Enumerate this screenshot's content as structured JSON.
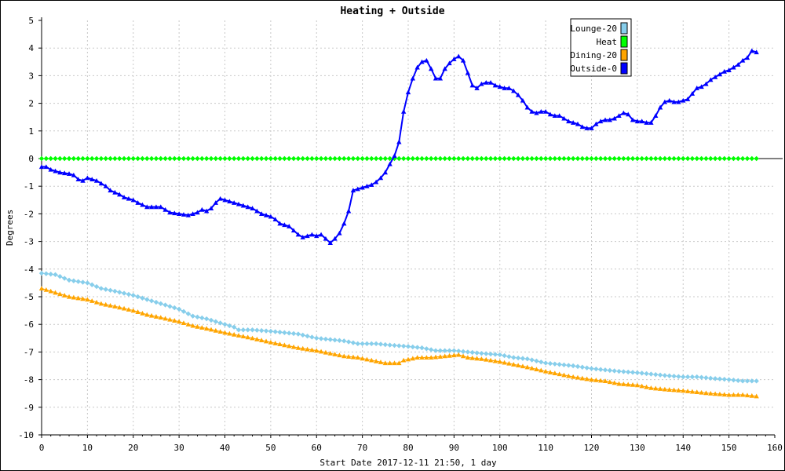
{
  "chart_data": {
    "type": "line",
    "title": "Heating + Outside",
    "xlabel": "Start Date 2017-12-11 21:50, 1 day",
    "ylabel": "Degrees",
    "xlim": [
      0,
      160
    ],
    "ylim": [
      -10,
      5
    ],
    "x_ticks": [
      0,
      10,
      20,
      30,
      40,
      50,
      60,
      70,
      80,
      90,
      100,
      110,
      120,
      130,
      140,
      150,
      160
    ],
    "y_ticks": [
      5,
      4,
      3,
      2,
      1,
      0,
      -1,
      -2,
      -3,
      -4,
      -5,
      -6,
      -7,
      -8,
      -9,
      -10
    ],
    "grid": true,
    "legend_position": "top-right",
    "series": [
      {
        "name": "Lounge-20",
        "color": "#87ceeb",
        "marker": "diamond",
        "points": [
          [
            0,
            -4.15
          ],
          [
            3,
            -4.2
          ],
          [
            6,
            -4.4
          ],
          [
            10,
            -4.5
          ],
          [
            13,
            -4.7
          ],
          [
            16,
            -4.8
          ],
          [
            20,
            -4.95
          ],
          [
            23,
            -5.1
          ],
          [
            26,
            -5.25
          ],
          [
            30,
            -5.45
          ],
          [
            33,
            -5.7
          ],
          [
            36,
            -5.8
          ],
          [
            40,
            -6.0
          ],
          [
            42,
            -6.1
          ],
          [
            43,
            -6.2
          ],
          [
            46,
            -6.2
          ],
          [
            50,
            -6.25
          ],
          [
            53,
            -6.3
          ],
          [
            56,
            -6.35
          ],
          [
            60,
            -6.5
          ],
          [
            63,
            -6.55
          ],
          [
            66,
            -6.6
          ],
          [
            69,
            -6.7
          ],
          [
            73,
            -6.7
          ],
          [
            76,
            -6.75
          ],
          [
            80,
            -6.8
          ],
          [
            83,
            -6.85
          ],
          [
            86,
            -6.95
          ],
          [
            90,
            -6.95
          ],
          [
            93,
            -7.0
          ],
          [
            96,
            -7.05
          ],
          [
            100,
            -7.1
          ],
          [
            103,
            -7.2
          ],
          [
            106,
            -7.25
          ],
          [
            110,
            -7.4
          ],
          [
            113,
            -7.45
          ],
          [
            116,
            -7.5
          ],
          [
            120,
            -7.6
          ],
          [
            123,
            -7.65
          ],
          [
            126,
            -7.7
          ],
          [
            130,
            -7.75
          ],
          [
            133,
            -7.8
          ],
          [
            136,
            -7.85
          ],
          [
            140,
            -7.9
          ],
          [
            143,
            -7.9
          ],
          [
            146,
            -7.95
          ],
          [
            150,
            -8.0
          ],
          [
            153,
            -8.05
          ],
          [
            156,
            -8.05
          ]
        ]
      },
      {
        "name": "Heat",
        "color": "#00ff00",
        "marker": "diamond",
        "points": [
          [
            0,
            0
          ],
          [
            156,
            0
          ]
        ]
      },
      {
        "name": "Dining-20",
        "color": "#ffa500",
        "marker": "triangle",
        "points": [
          [
            0,
            -4.7
          ],
          [
            3,
            -4.85
          ],
          [
            6,
            -5.0
          ],
          [
            10,
            -5.1
          ],
          [
            13,
            -5.25
          ],
          [
            16,
            -5.35
          ],
          [
            20,
            -5.5
          ],
          [
            23,
            -5.65
          ],
          [
            26,
            -5.75
          ],
          [
            30,
            -5.9
          ],
          [
            33,
            -6.05
          ],
          [
            36,
            -6.15
          ],
          [
            40,
            -6.3
          ],
          [
            43,
            -6.4
          ],
          [
            46,
            -6.5
          ],
          [
            50,
            -6.65
          ],
          [
            53,
            -6.75
          ],
          [
            56,
            -6.85
          ],
          [
            60,
            -6.95
          ],
          [
            63,
            -7.05
          ],
          [
            66,
            -7.15
          ],
          [
            69,
            -7.2
          ],
          [
            72,
            -7.3
          ],
          [
            75,
            -7.4
          ],
          [
            78,
            -7.4
          ],
          [
            79,
            -7.3
          ],
          [
            82,
            -7.2
          ],
          [
            85,
            -7.2
          ],
          [
            88,
            -7.15
          ],
          [
            91,
            -7.1
          ],
          [
            93,
            -7.2
          ],
          [
            96,
            -7.25
          ],
          [
            100,
            -7.35
          ],
          [
            103,
            -7.45
          ],
          [
            106,
            -7.55
          ],
          [
            110,
            -7.7
          ],
          [
            113,
            -7.8
          ],
          [
            116,
            -7.9
          ],
          [
            120,
            -8.0
          ],
          [
            123,
            -8.05
          ],
          [
            126,
            -8.15
          ],
          [
            130,
            -8.2
          ],
          [
            133,
            -8.3
          ],
          [
            136,
            -8.35
          ],
          [
            140,
            -8.4
          ],
          [
            143,
            -8.45
          ],
          [
            146,
            -8.5
          ],
          [
            150,
            -8.55
          ],
          [
            153,
            -8.55
          ],
          [
            156,
            -8.6
          ]
        ]
      },
      {
        "name": "Outside-0",
        "color": "#0000ff",
        "marker": "triangle",
        "points": [
          [
            0,
            -0.3
          ],
          [
            1,
            -0.3
          ],
          [
            2,
            -0.4
          ],
          [
            4,
            -0.5
          ],
          [
            6,
            -0.55
          ],
          [
            7,
            -0.6
          ],
          [
            8,
            -0.75
          ],
          [
            9,
            -0.8
          ],
          [
            10,
            -0.7
          ],
          [
            12,
            -0.8
          ],
          [
            14,
            -1.0
          ],
          [
            15,
            -1.15
          ],
          [
            17,
            -1.3
          ],
          [
            18,
            -1.4
          ],
          [
            20,
            -1.5
          ],
          [
            21,
            -1.6
          ],
          [
            23,
            -1.75
          ],
          [
            26,
            -1.75
          ],
          [
            28,
            -1.95
          ],
          [
            30,
            -2.0
          ],
          [
            32,
            -2.05
          ],
          [
            33,
            -2.0
          ],
          [
            34,
            -1.95
          ],
          [
            35,
            -1.85
          ],
          [
            36,
            -1.9
          ],
          [
            37,
            -1.8
          ],
          [
            38,
            -1.6
          ],
          [
            39,
            -1.45
          ],
          [
            40,
            -1.5
          ],
          [
            42,
            -1.6
          ],
          [
            44,
            -1.7
          ],
          [
            46,
            -1.8
          ],
          [
            48,
            -2.0
          ],
          [
            50,
            -2.1
          ],
          [
            51,
            -2.2
          ],
          [
            52,
            -2.35
          ],
          [
            54,
            -2.45
          ],
          [
            55,
            -2.6
          ],
          [
            56,
            -2.75
          ],
          [
            57,
            -2.85
          ],
          [
            58,
            -2.8
          ],
          [
            59,
            -2.75
          ],
          [
            60,
            -2.8
          ],
          [
            61,
            -2.75
          ],
          [
            62,
            -2.9
          ],
          [
            63,
            -3.05
          ],
          [
            64,
            -2.9
          ],
          [
            65,
            -2.7
          ],
          [
            66,
            -2.35
          ],
          [
            67,
            -1.9
          ],
          [
            68,
            -1.15
          ],
          [
            69,
            -1.1
          ],
          [
            70,
            -1.05
          ],
          [
            71,
            -1.0
          ],
          [
            72,
            -0.95
          ],
          [
            73,
            -0.85
          ],
          [
            74,
            -0.7
          ],
          [
            75,
            -0.5
          ],
          [
            76,
            -0.2
          ],
          [
            77,
            0.1
          ],
          [
            78,
            0.6
          ],
          [
            79,
            1.7
          ],
          [
            80,
            2.4
          ],
          [
            81,
            2.9
          ],
          [
            82,
            3.3
          ],
          [
            83,
            3.5
          ],
          [
            84,
            3.55
          ],
          [
            85,
            3.25
          ],
          [
            86,
            2.9
          ],
          [
            87,
            2.9
          ],
          [
            88,
            3.25
          ],
          [
            89,
            3.45
          ],
          [
            90,
            3.6
          ],
          [
            91,
            3.7
          ],
          [
            92,
            3.55
          ],
          [
            93,
            3.1
          ],
          [
            94,
            2.65
          ],
          [
            95,
            2.55
          ],
          [
            96,
            2.7
          ],
          [
            97,
            2.75
          ],
          [
            98,
            2.75
          ],
          [
            99,
            2.65
          ],
          [
            100,
            2.6
          ],
          [
            101,
            2.55
          ],
          [
            102,
            2.55
          ],
          [
            103,
            2.45
          ],
          [
            104,
            2.3
          ],
          [
            105,
            2.1
          ],
          [
            106,
            1.85
          ],
          [
            107,
            1.7
          ],
          [
            108,
            1.65
          ],
          [
            109,
            1.7
          ],
          [
            110,
            1.7
          ],
          [
            111,
            1.6
          ],
          [
            112,
            1.55
          ],
          [
            113,
            1.55
          ],
          [
            114,
            1.45
          ],
          [
            115,
            1.35
          ],
          [
            116,
            1.3
          ],
          [
            117,
            1.25
          ],
          [
            118,
            1.15
          ],
          [
            119,
            1.1
          ],
          [
            120,
            1.1
          ],
          [
            121,
            1.25
          ],
          [
            122,
            1.35
          ],
          [
            123,
            1.4
          ],
          [
            124,
            1.4
          ],
          [
            125,
            1.45
          ],
          [
            126,
            1.55
          ],
          [
            127,
            1.65
          ],
          [
            128,
            1.6
          ],
          [
            129,
            1.4
          ],
          [
            130,
            1.35
          ],
          [
            131,
            1.35
          ],
          [
            132,
            1.3
          ],
          [
            133,
            1.3
          ],
          [
            134,
            1.55
          ],
          [
            135,
            1.85
          ],
          [
            136,
            2.05
          ],
          [
            137,
            2.1
          ],
          [
            138,
            2.05
          ],
          [
            139,
            2.05
          ],
          [
            140,
            2.1
          ],
          [
            141,
            2.15
          ],
          [
            142,
            2.35
          ],
          [
            143,
            2.55
          ],
          [
            144,
            2.6
          ],
          [
            145,
            2.7
          ],
          [
            146,
            2.85
          ],
          [
            147,
            2.95
          ],
          [
            148,
            3.05
          ],
          [
            149,
            3.15
          ],
          [
            150,
            3.2
          ],
          [
            151,
            3.3
          ],
          [
            152,
            3.4
          ],
          [
            153,
            3.55
          ],
          [
            154,
            3.65
          ],
          [
            155,
            3.9
          ],
          [
            156,
            3.85
          ]
        ]
      }
    ]
  }
}
